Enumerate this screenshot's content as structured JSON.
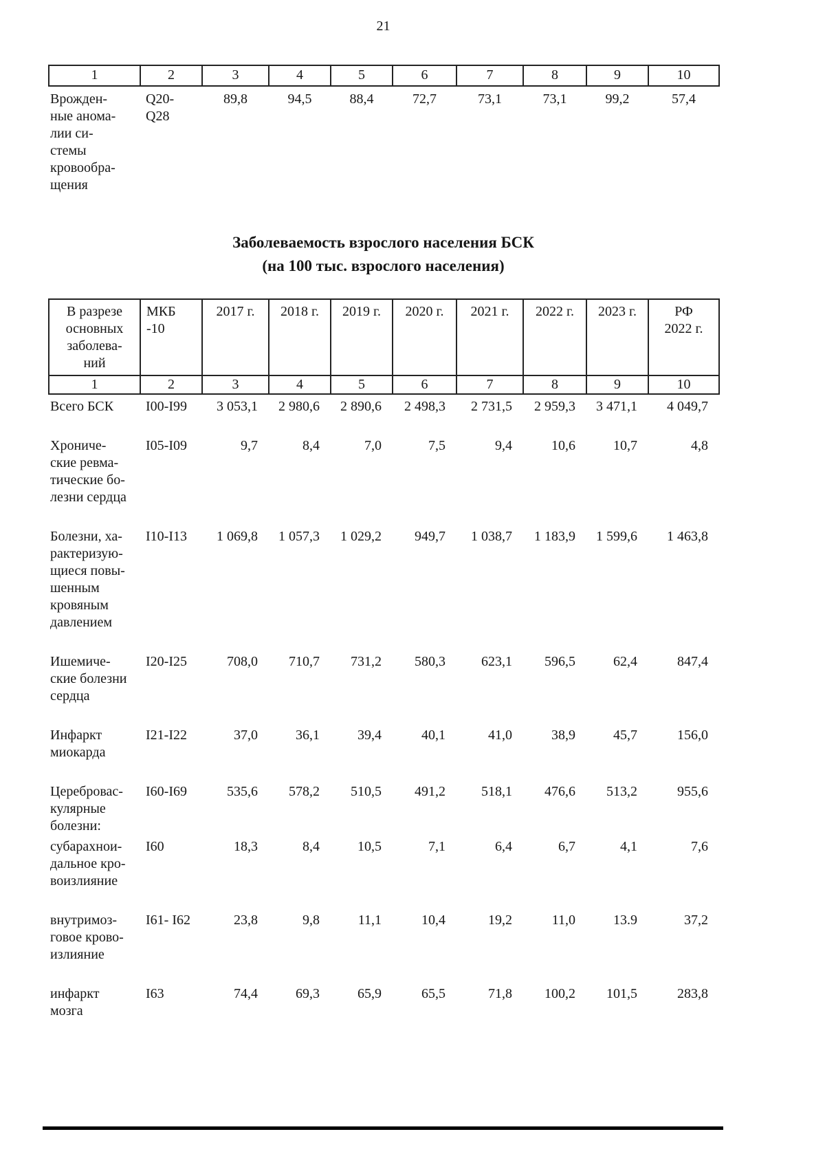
{
  "page_number": "21",
  "table1": {
    "col_numbers": [
      "1",
      "2",
      "3",
      "4",
      "5",
      "6",
      "7",
      "8",
      "9",
      "10"
    ],
    "row": {
      "name": "Врожден-\nные анома-\nлии си-\nстемы\nкровообра-\nщения",
      "code": "Q20-\nQ28",
      "values": [
        "89,8",
        "94,5",
        "88,4",
        "72,7",
        "73,1",
        "73,1",
        "99,2",
        "57,4"
      ]
    }
  },
  "title": {
    "line1": "Заболеваемость взрослого населения БСК",
    "line2": "(на 100 тыс. взрослого населения)"
  },
  "table2": {
    "header": {
      "col1": "В разрезе\nосновных\nзаболева-\nний",
      "col2": "МКБ\n-10",
      "years": [
        "2017 г.",
        "2018 г.",
        "2019 г.",
        "2020 г.",
        "2021 г.",
        "2022 г.",
        "2023 г."
      ],
      "col10": "РФ\n2022 г."
    },
    "col_numbers": [
      "1",
      "2",
      "3",
      "4",
      "5",
      "6",
      "7",
      "8",
      "9",
      "10"
    ],
    "rows": [
      {
        "name": "Всего БСК",
        "code": "I00-I99",
        "values": [
          "3 053,1",
          "2 980,6",
          "2 890,6",
          "2 498,3",
          "2 731,5",
          "2 959,3",
          "3 471,1",
          "4 049,7"
        ]
      },
      {
        "name": "Хрониче-\nские ревма-\nтические бо-\nлезни сердца",
        "code": "I05-I09",
        "values": [
          "9,7",
          "8,4",
          "7,0",
          "7,5",
          "9,4",
          "10,6",
          "10,7",
          "4,8"
        ]
      },
      {
        "name": "Болезни, ха-\nрактеризую-\nщиеся повы-\nшенным\nкровяным\nдавлением",
        "code": "I10-I13",
        "values": [
          "1 069,8",
          "1 057,3",
          "1 029,2",
          "949,7",
          "1 038,7",
          "1 183,9",
          "1 599,6",
          "1 463,8"
        ]
      },
      {
        "name": "Ишемиче-\nские болезни\nсердца",
        "code": "I20-I25",
        "values": [
          "708,0",
          "710,7",
          "731,2",
          "580,3",
          "623,1",
          "596,5",
          "62,4",
          "847,4"
        ]
      },
      {
        "name": "Инфаркт\nмиокарда",
        "code": "I21-I22",
        "values": [
          "37,0",
          "36,1",
          "39,4",
          "40,1",
          "41,0",
          "38,9",
          "45,7",
          "156,0"
        ]
      },
      {
        "name": "Церебровас-\nкулярные\nболезни:",
        "code": "I60-I69",
        "values": [
          "535,6",
          "578,2",
          "510,5",
          "491,2",
          "518,1",
          "476,6",
          "513,2",
          "955,6"
        ],
        "gap": false
      },
      {
        "name": "субарахнои-\nдальное кро-\nвоизлияние",
        "code": "I60",
        "values": [
          "18,3",
          "8,4",
          "10,5",
          "7,1",
          "6,4",
          "6,7",
          "4,1",
          "7,6"
        ]
      },
      {
        "name": "внутримоз-\nговое крово-\nизлияние",
        "code": "I61- I62",
        "values": [
          "23,8",
          "9,8",
          "11,1",
          "10,4",
          "19,2",
          "11,0",
          "13.9",
          "37,2"
        ]
      },
      {
        "name": "инфаркт\nмозга",
        "code": "I63",
        "values": [
          "74,4",
          "69,3",
          "65,9",
          "65,5",
          "71,8",
          "100,2",
          "101,5",
          "283,8"
        ]
      }
    ]
  }
}
